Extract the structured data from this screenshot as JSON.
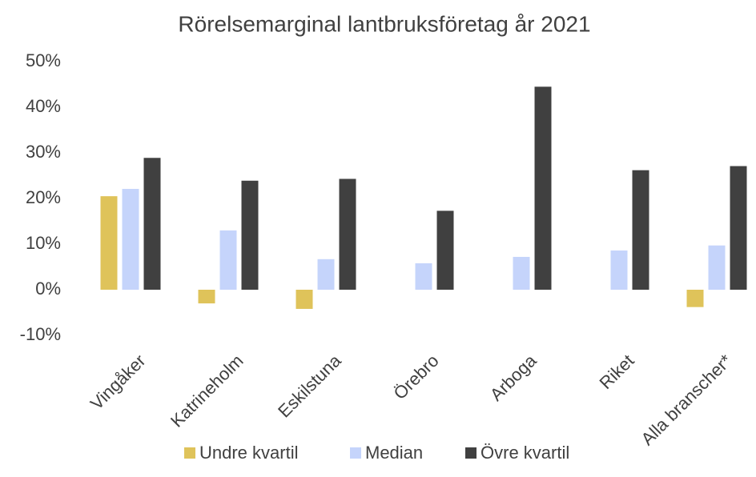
{
  "chart_data": {
    "type": "bar",
    "title": "Rörelsemarginal lantbruksföretag år 2021",
    "categories": [
      "Vingåker",
      "Katrineholm",
      "Eskilstuna",
      "Örebro",
      "Arboga",
      "Riket",
      "Alla branscher*"
    ],
    "series": [
      {
        "name": "Undre kvartil",
        "color": "#dfc35a",
        "values": [
          20.5,
          -3,
          -4.2,
          null,
          null,
          null,
          -3.8
        ]
      },
      {
        "name": "Median",
        "color": "#c5d4fb",
        "values": [
          22.1,
          13,
          6.7,
          5.8,
          7.2,
          8.6,
          9.7
        ]
      },
      {
        "name": "Övre kvartil",
        "color": "#404040",
        "values": [
          28.9,
          23.9,
          24.3,
          17.3,
          44.5,
          26.2,
          27.1
        ]
      }
    ],
    "ylim": [
      -10,
      50
    ],
    "yticks": [
      {
        "value": -10,
        "label": "-10%"
      },
      {
        "value": 0,
        "label": "0%"
      },
      {
        "value": 10,
        "label": "10%"
      },
      {
        "value": 20,
        "label": "20%"
      },
      {
        "value": 30,
        "label": "30%"
      },
      {
        "value": 40,
        "label": "40%"
      },
      {
        "value": 50,
        "label": "50%"
      }
    ],
    "grid": false,
    "legend": "bottom"
  }
}
